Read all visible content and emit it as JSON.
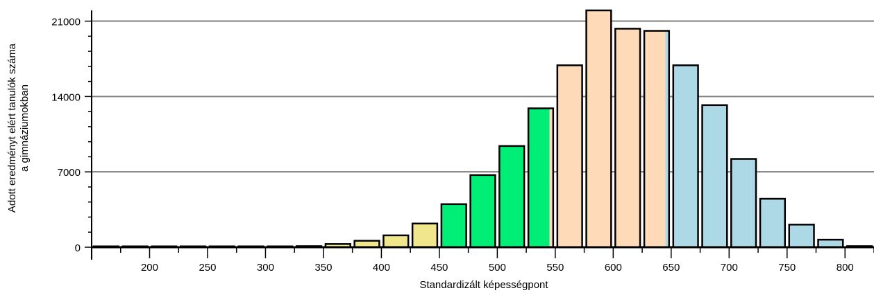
{
  "chart_data": {
    "type": "bar",
    "title": "",
    "xlabel": "Standardizált képességpont",
    "ylabel_lines": [
      "Adott eredményt elért tanulók száma",
      "a gimnáziumokban"
    ],
    "xlim": [
      150,
      825
    ],
    "ylim": [
      0,
      22000
    ],
    "x_ticks": [
      200,
      250,
      300,
      350,
      400,
      450,
      500,
      550,
      600,
      650,
      700,
      750,
      800
    ],
    "y_ticks": [
      0,
      7000,
      14000,
      21000
    ],
    "grid": true,
    "bin_width": 25,
    "bins": [
      {
        "x": 150,
        "value": 80
      },
      {
        "x": 175,
        "value": 80
      },
      {
        "x": 200,
        "value": 80
      },
      {
        "x": 225,
        "value": 80
      },
      {
        "x": 250,
        "value": 80
      },
      {
        "x": 275,
        "value": 80
      },
      {
        "x": 300,
        "value": 80
      },
      {
        "x": 325,
        "value": 100
      },
      {
        "x": 350,
        "value": 300
      },
      {
        "x": 375,
        "value": 600
      },
      {
        "x": 400,
        "value": 1100
      },
      {
        "x": 425,
        "value": 2200
      },
      {
        "x": 450,
        "value": 4000
      },
      {
        "x": 475,
        "value": 6700
      },
      {
        "x": 500,
        "value": 9400
      },
      {
        "x": 525,
        "value": 12900
      },
      {
        "x": 550,
        "value": 16900
      },
      {
        "x": 575,
        "value": 22000
      },
      {
        "x": 600,
        "value": 20300
      },
      {
        "x": 625,
        "value": 20100
      },
      {
        "x": 650,
        "value": 16900
      },
      {
        "x": 675,
        "value": 13200
      },
      {
        "x": 700,
        "value": 8200
      },
      {
        "x": 725,
        "value": 4500
      },
      {
        "x": 750,
        "value": 2100
      },
      {
        "x": 775,
        "value": 700
      },
      {
        "x": 800,
        "value": 100
      }
    ],
    "color_bands": [
      {
        "from": 150,
        "to": 450,
        "color": "#f0e68c"
      },
      {
        "from": 450,
        "to": 545,
        "color": "#00ee76"
      },
      {
        "from": 545,
        "to": 645,
        "color": "#ffdab9"
      },
      {
        "from": 645,
        "to": 825,
        "color": "#add8e6"
      }
    ],
    "colors": {
      "bar_outline": "#000000",
      "grid": "#808080",
      "axis": "#000000"
    }
  }
}
